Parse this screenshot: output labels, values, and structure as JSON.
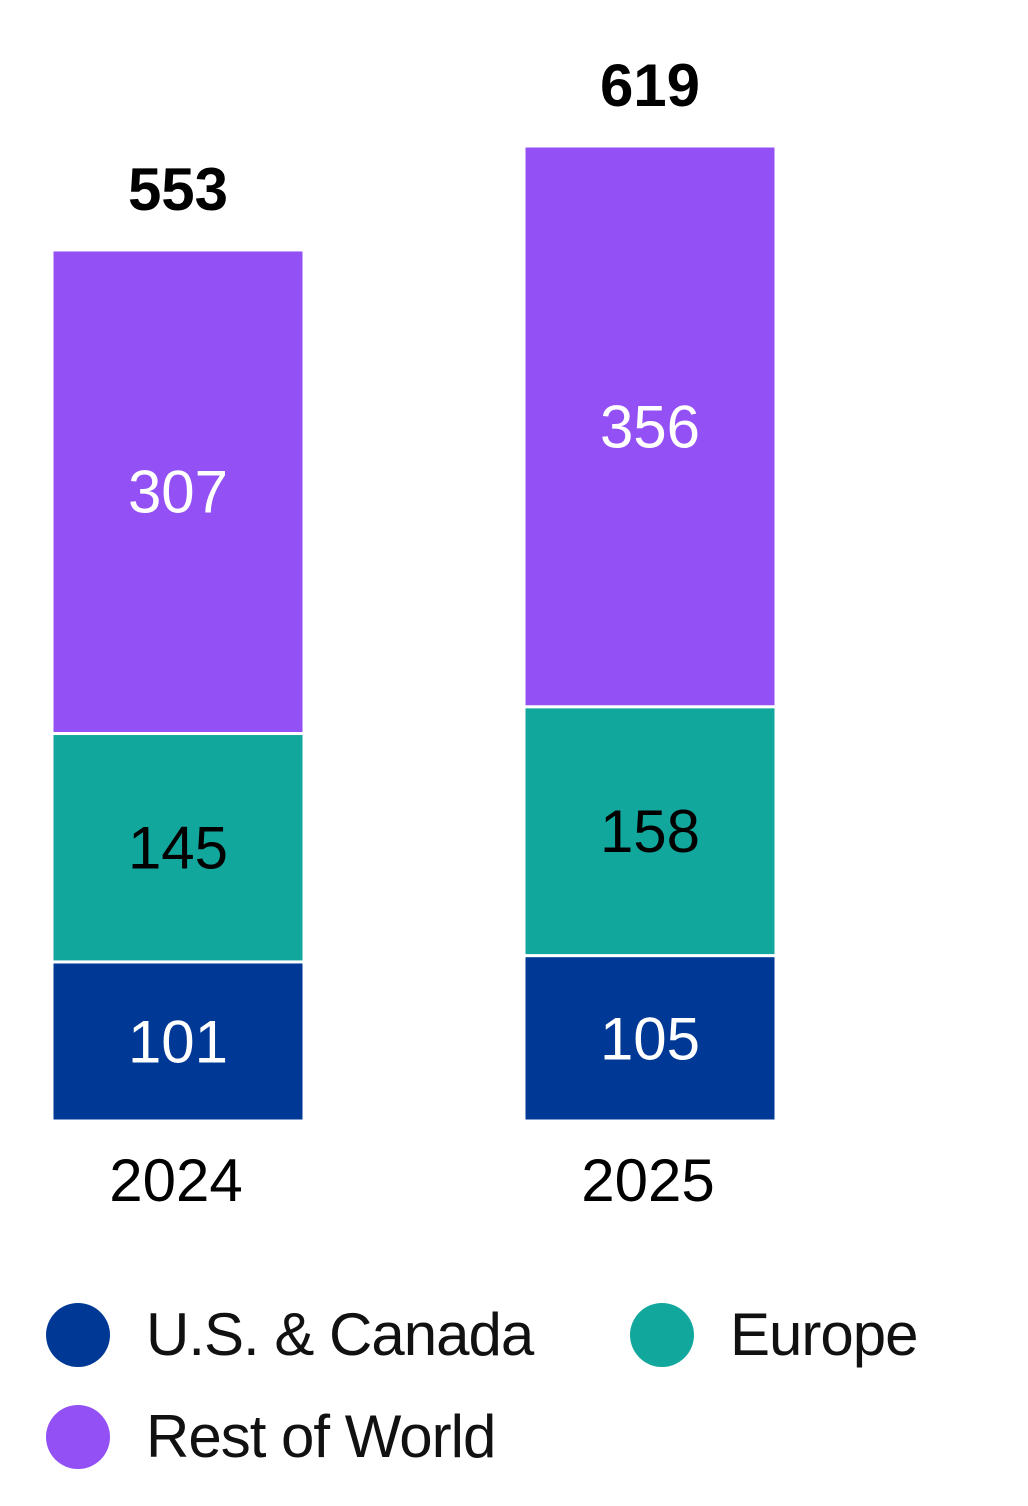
{
  "chart_data": {
    "type": "bar",
    "stacked": true,
    "categories": [
      "2024",
      "2025"
    ],
    "totals": [
      553,
      619
    ],
    "series": [
      {
        "name": "U.S. & Canada",
        "values": [
          101,
          105
        ],
        "color": "#003896",
        "label_color": "#ffffff"
      },
      {
        "name": "Europe",
        "values": [
          145,
          158
        ],
        "color": "#12a79d",
        "label_color": "#000000"
      },
      {
        "name": "Rest of World",
        "values": [
          307,
          356
        ],
        "color": "#9350f5",
        "label_color": "#ffffff"
      }
    ],
    "title": "",
    "xlabel": "",
    "ylabel": "",
    "ylim": [
      0,
      619
    ],
    "grid": false,
    "legend_position": "bottom"
  }
}
